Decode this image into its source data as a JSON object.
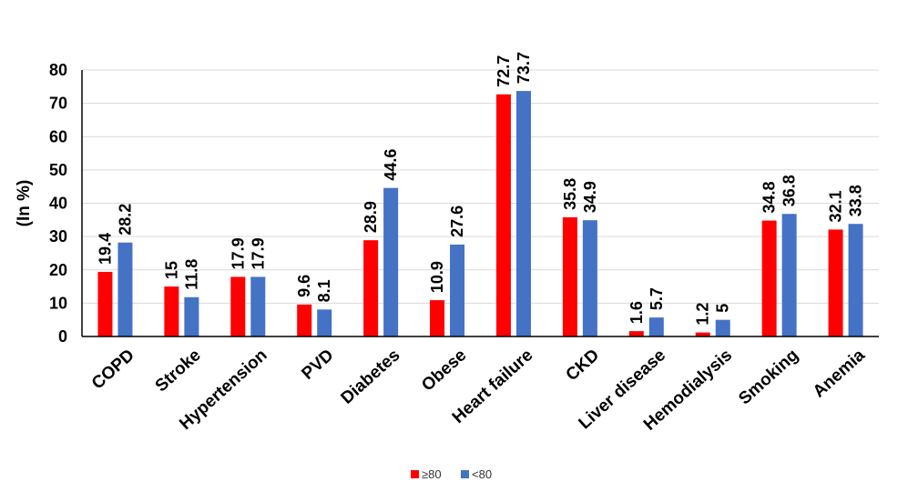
{
  "chart_data": {
    "type": "bar",
    "title": "",
    "xlabel": "",
    "ylabel": "(In %)",
    "ylim": [
      0,
      80
    ],
    "yticks": [
      0,
      10,
      20,
      30,
      40,
      50,
      60,
      70,
      80
    ],
    "grid": true,
    "legend_position": "bottom",
    "categories": [
      "COPD",
      "Stroke",
      "Hypertension",
      "PVD",
      "Diabetes",
      "Obese",
      "Heart failure",
      "CKD",
      "Liver disease",
      "Hemodialysis",
      "Smoking",
      "Anemia"
    ],
    "series": [
      {
        "name": "≥80",
        "color": "#ff0000",
        "values": [
          19.4,
          15,
          17.9,
          9.6,
          28.9,
          10.9,
          72.7,
          35.8,
          1.6,
          1.2,
          34.8,
          32.1
        ]
      },
      {
        "name": "<80",
        "color": "#4472c4",
        "values": [
          28.2,
          11.8,
          17.9,
          8.1,
          44.6,
          27.6,
          73.7,
          34.9,
          5.7,
          5,
          36.8,
          33.8
        ]
      }
    ]
  }
}
